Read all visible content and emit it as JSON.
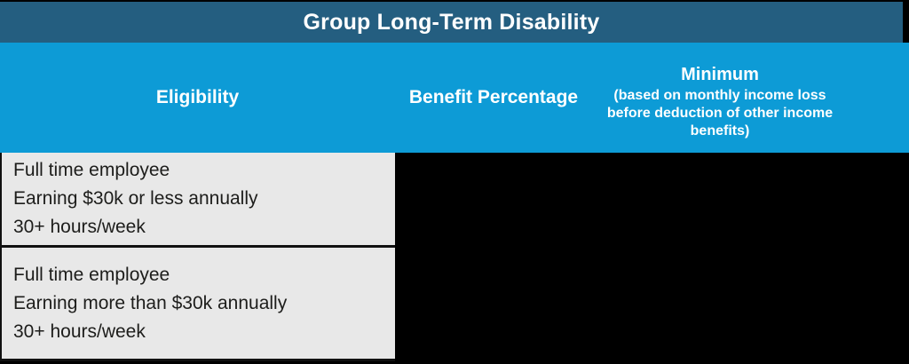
{
  "table": {
    "title": "Group Long-Term Disability",
    "columns": {
      "eligibility": "Eligibility",
      "benefit_percentage": "Benefit Percentage",
      "minimum_title": "Minimum",
      "minimum_note": "(based on monthly income loss before deduction of other income benefits)"
    },
    "rows": [
      {
        "lines": [
          "Full time employee",
          "Earning $30k or less annually",
          "30+ hours/week"
        ]
      },
      {
        "lines": [
          "Full time employee",
          "Earning more than $30k annually",
          "30+ hours/week"
        ]
      }
    ],
    "colors": {
      "title_bar": "#245E80",
      "header_row": "#0D9BD6",
      "header_text": "#FFFFFF",
      "cell_background": "#E8E8E8",
      "cell_text": "#1D1D1B",
      "border": "#111111",
      "page_background": "#000000"
    }
  }
}
